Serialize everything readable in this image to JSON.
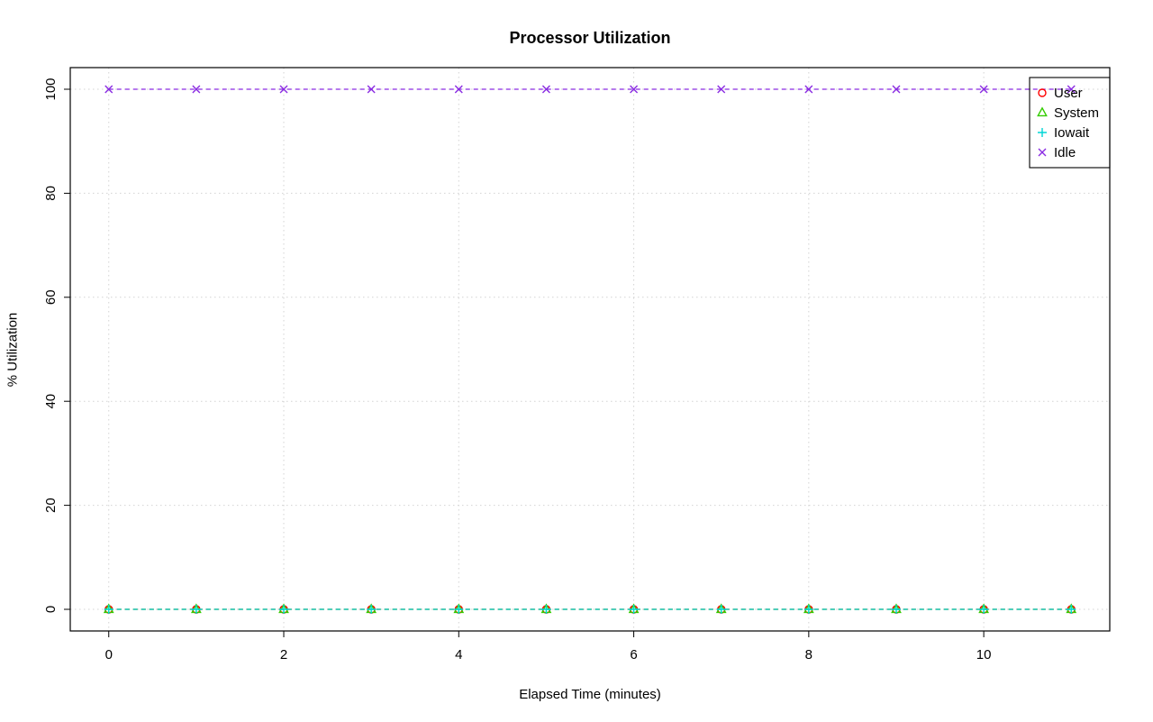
{
  "chart_data": {
    "type": "line",
    "title": "Processor Utilization",
    "xlabel": "Elapsed Time (minutes)",
    "ylabel": "% Utilization",
    "x": [
      0,
      1,
      2,
      3,
      4,
      5,
      6,
      7,
      8,
      9,
      10,
      11
    ],
    "series": [
      {
        "name": "User",
        "marker": "circle",
        "color": "#ff0000",
        "line": "dashed",
        "values": [
          0,
          0,
          0,
          0,
          0,
          0,
          0,
          0,
          0,
          0,
          0,
          0
        ]
      },
      {
        "name": "System",
        "marker": "triangle",
        "color": "#33cc00",
        "line": "dashed",
        "values": [
          0,
          0,
          0,
          0,
          0,
          0,
          0,
          0,
          0,
          0,
          0,
          0
        ]
      },
      {
        "name": "Iowait",
        "marker": "plus",
        "color": "#00d6d6",
        "line": "dashed",
        "values": [
          0,
          0,
          0,
          0,
          0,
          0,
          0,
          0,
          0,
          0,
          0,
          0
        ]
      },
      {
        "name": "Idle",
        "marker": "x",
        "color": "#8a2be2",
        "line": "dashed",
        "values": [
          100,
          100,
          100,
          100,
          100,
          100,
          100,
          100,
          100,
          100,
          100,
          100
        ]
      }
    ],
    "xticks": [
      0,
      2,
      4,
      6,
      8,
      10
    ],
    "yticks": [
      0,
      20,
      40,
      60,
      80,
      100
    ],
    "xlim": [
      -0.44,
      11.44
    ],
    "ylim": [
      -4.16,
      104.16
    ],
    "grid": true,
    "grid_color": "#d3d3d3",
    "axis_color": "#000000",
    "background": "#ffffff",
    "legend": {
      "position": "top-right",
      "entries": [
        "User",
        "System",
        "Iowait",
        "Idle"
      ]
    }
  }
}
